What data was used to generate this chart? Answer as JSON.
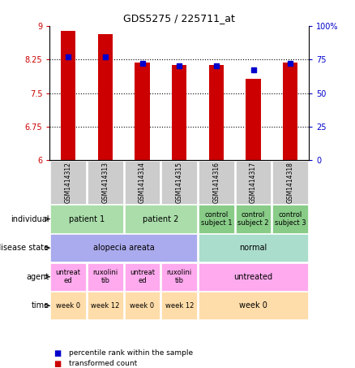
{
  "title": "GDS5275 / 225711_at",
  "samples": [
    "GSM1414312",
    "GSM1414313",
    "GSM1414314",
    "GSM1414315",
    "GSM1414316",
    "GSM1414317",
    "GSM1414318"
  ],
  "transformed_count": [
    8.88,
    8.82,
    8.18,
    8.12,
    8.12,
    7.82,
    8.18
  ],
  "percentile_rank": [
    77,
    77,
    72,
    70,
    70,
    67,
    72
  ],
  "ylim_left": [
    6,
    9
  ],
  "ylim_right": [
    0,
    100
  ],
  "yticks_left": [
    6,
    6.75,
    7.5,
    8.25,
    9
  ],
  "yticks_right": [
    0,
    25,
    50,
    75,
    100
  ],
  "ytick_labels_left": [
    "6",
    "6.75",
    "7.5",
    "8.25",
    "9"
  ],
  "ytick_labels_right": [
    "0",
    "25",
    "50",
    "75",
    "100%"
  ],
  "bar_color": "#cc0000",
  "dot_color": "#0000cc",
  "annotation_rows": [
    {
      "label": "individual",
      "cells": [
        {
          "text": "patient 1",
          "span": 2,
          "color": "#aaddaa",
          "fontsize": 7
        },
        {
          "text": "patient 2",
          "span": 2,
          "color": "#aaddaa",
          "fontsize": 7
        },
        {
          "text": "control\nsubject 1",
          "span": 1,
          "color": "#88cc88",
          "fontsize": 6
        },
        {
          "text": "control\nsubject 2",
          "span": 1,
          "color": "#88cc88",
          "fontsize": 6
        },
        {
          "text": "control\nsubject 3",
          "span": 1,
          "color": "#88cc88",
          "fontsize": 6
        }
      ]
    },
    {
      "label": "disease state",
      "cells": [
        {
          "text": "alopecia areata",
          "span": 4,
          "color": "#aaaaee",
          "fontsize": 7
        },
        {
          "text": "normal",
          "span": 3,
          "color": "#aaddcc",
          "fontsize": 7
        }
      ]
    },
    {
      "label": "agent",
      "cells": [
        {
          "text": "untreat\ned",
          "span": 1,
          "color": "#ffaaee",
          "fontsize": 6
        },
        {
          "text": "ruxolini\ntib",
          "span": 1,
          "color": "#ffaaee",
          "fontsize": 6
        },
        {
          "text": "untreat\ned",
          "span": 1,
          "color": "#ffaaee",
          "fontsize": 6
        },
        {
          "text": "ruxolini\ntib",
          "span": 1,
          "color": "#ffaaee",
          "fontsize": 6
        },
        {
          "text": "untreated",
          "span": 3,
          "color": "#ffaaee",
          "fontsize": 7
        }
      ]
    },
    {
      "label": "time",
      "cells": [
        {
          "text": "week 0",
          "span": 1,
          "color": "#ffddaa",
          "fontsize": 6
        },
        {
          "text": "week 12",
          "span": 1,
          "color": "#ffddaa",
          "fontsize": 6
        },
        {
          "text": "week 0",
          "span": 1,
          "color": "#ffddaa",
          "fontsize": 6
        },
        {
          "text": "week 12",
          "span": 1,
          "color": "#ffddaa",
          "fontsize": 6
        },
        {
          "text": "week 0",
          "span": 3,
          "color": "#ffddaa",
          "fontsize": 7
        }
      ]
    }
  ],
  "legend": [
    {
      "color": "#cc0000",
      "label": "transformed count"
    },
    {
      "color": "#0000cc",
      "label": "percentile rank within the sample"
    }
  ]
}
